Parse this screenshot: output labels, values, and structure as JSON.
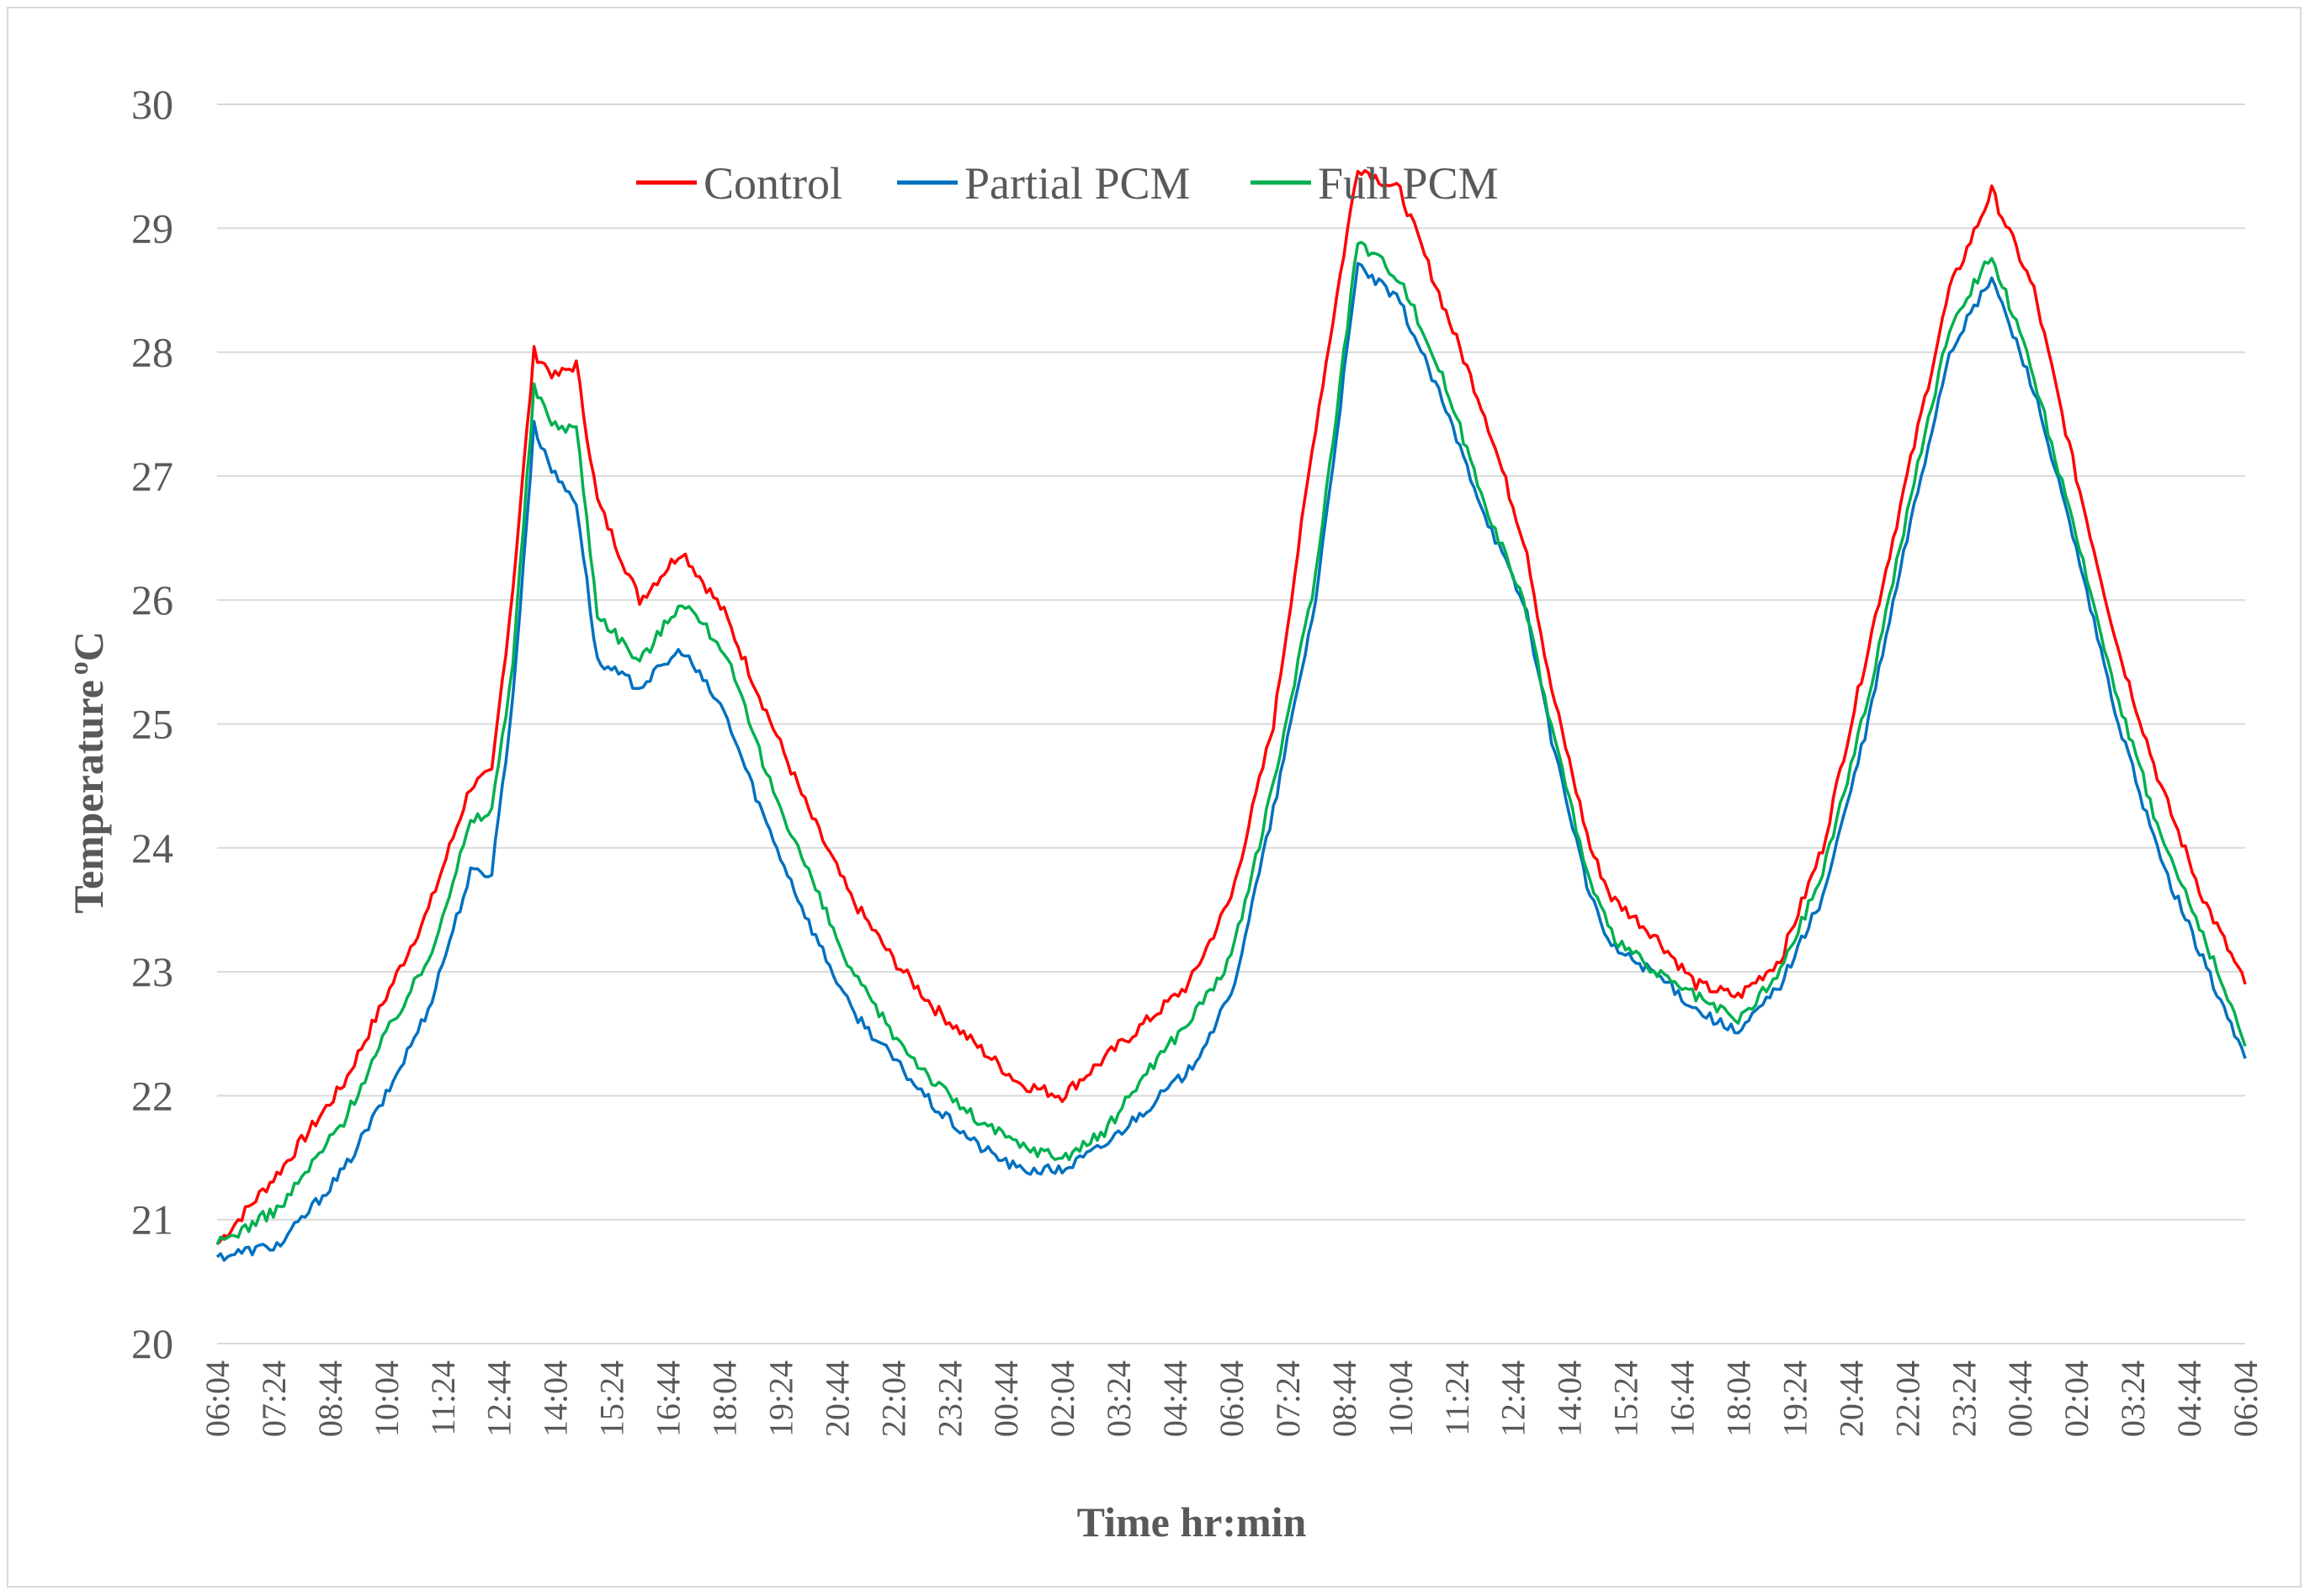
{
  "chart_data": {
    "type": "line",
    "title": "",
    "xlabel": "Time hr:min",
    "ylabel": "Temperature",
    "ylabel_sup": "o",
    "ylabel_unit": "C",
    "ylim": [
      20,
      30
    ],
    "yticks": [
      "20",
      "21",
      "22",
      "23",
      "24",
      "25",
      "26",
      "27",
      "28",
      "29",
      "30"
    ],
    "grid": true,
    "legend_position": "top-center",
    "x_tick_labels": [
      "06:04",
      "07:24",
      "08:44",
      "10:04",
      "11:24",
      "12:44",
      "14:04",
      "15:24",
      "16:44",
      "18:04",
      "19:24",
      "20:44",
      "22:04",
      "23:24",
      "00:44",
      "02:04",
      "03:24",
      "04:44",
      "06:04",
      "07:24",
      "08:44",
      "10:04",
      "11:24",
      "12:44",
      "14:04",
      "15:24",
      "16:44",
      "18:04",
      "19:24",
      "20:44",
      "22:04",
      "23:24",
      "00:44",
      "02:04",
      "03:24",
      "04:44",
      "06:04"
    ],
    "x_hours": [
      0,
      1.5,
      3,
      4,
      5,
      6,
      6.5,
      7,
      7.5,
      8,
      8.5,
      9,
      10,
      11,
      12,
      13,
      14,
      15,
      16,
      17,
      18,
      19,
      20,
      21,
      22,
      23,
      24,
      25,
      26,
      27,
      28,
      29,
      30,
      31,
      31.5,
      32,
      32.5,
      33,
      34,
      35,
      36,
      37,
      38,
      39,
      40,
      41,
      42,
      43,
      44,
      45,
      46,
      47,
      48
    ],
    "series": [
      {
        "name": "Control",
        "color": "#ff0000",
        "values": [
          20.8,
          21.4,
          22.1,
          22.8,
          23.5,
          24.5,
          24.6,
          26.1,
          28.0,
          27.8,
          27.9,
          26.8,
          26.0,
          26.4,
          25.9,
          25.1,
          24.3,
          23.6,
          23.1,
          22.7,
          22.4,
          22.1,
          22.0,
          22.3,
          22.6,
          22.9,
          23.6,
          25.0,
          27.4,
          29.5,
          29.3,
          28.4,
          27.5,
          26.4,
          25.4,
          24.7,
          24.0,
          23.6,
          23.3,
          22.9,
          22.8,
          23.1,
          24.0,
          25.5,
          27.0,
          28.5,
          29.3,
          28.5,
          27.0,
          25.6,
          24.5,
          23.6,
          22.9
        ]
      },
      {
        "name": "Partial PCM",
        "color": "#0070c0",
        "values": [
          20.7,
          20.8,
          21.4,
          22.0,
          22.7,
          23.8,
          23.8,
          25.2,
          27.4,
          27.0,
          26.8,
          25.5,
          25.3,
          25.6,
          25.1,
          24.2,
          23.4,
          22.7,
          22.3,
          21.9,
          21.6,
          21.4,
          21.4,
          21.6,
          21.9,
          22.2,
          22.8,
          24.3,
          26.0,
          28.7,
          28.4,
          27.6,
          26.7,
          25.9,
          25.0,
          24.3,
          23.6,
          23.2,
          23.0,
          22.7,
          22.5,
          22.9,
          23.6,
          24.9,
          26.5,
          28.0,
          28.6,
          27.7,
          26.4,
          25.0,
          23.9,
          23.1,
          22.3
        ]
      },
      {
        "name": "Full PCM",
        "color": "#00b050",
        "values": [
          20.8,
          21.1,
          21.8,
          22.5,
          23.1,
          24.2,
          24.3,
          25.5,
          27.7,
          27.4,
          27.4,
          25.9,
          25.5,
          26.0,
          25.6,
          24.6,
          23.8,
          23.0,
          22.5,
          22.1,
          21.8,
          21.6,
          21.5,
          21.7,
          22.2,
          22.6,
          23.1,
          24.5,
          26.2,
          28.9,
          28.6,
          27.8,
          26.8,
          25.9,
          25.1,
          24.4,
          23.7,
          23.3,
          23.0,
          22.8,
          22.6,
          23.0,
          23.8,
          25.1,
          26.7,
          28.2,
          28.8,
          27.8,
          26.5,
          25.2,
          24.1,
          23.3,
          22.4
        ]
      }
    ]
  }
}
